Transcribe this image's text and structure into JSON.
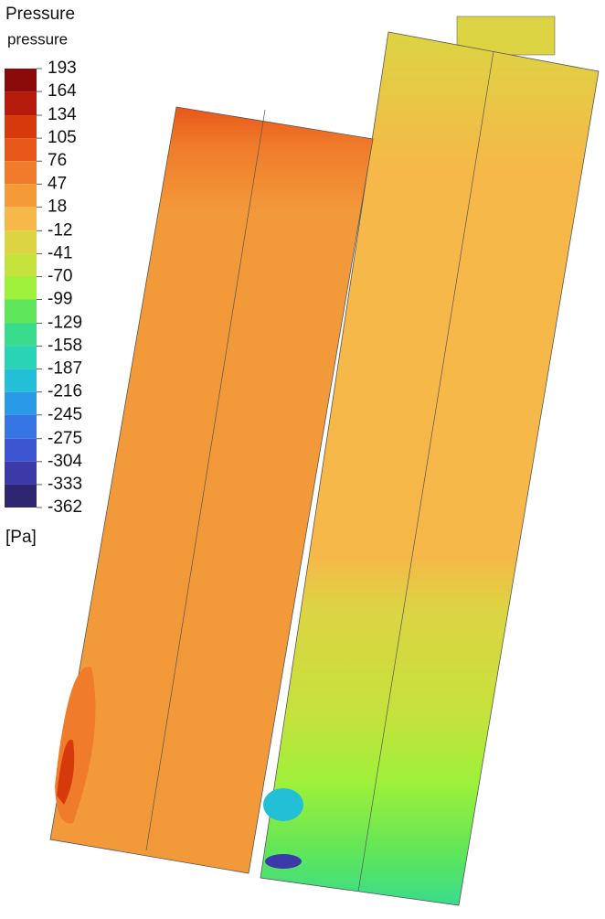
{
  "chart_data": {
    "type": "contour",
    "title": "Pressure",
    "subtitle": "pressure",
    "unit": "[Pa]",
    "clim": [
      -362,
      193
    ],
    "ticks": [
      193,
      164,
      134,
      105,
      76,
      47,
      18,
      -12,
      -41,
      -70,
      -99,
      -129,
      -158,
      -187,
      -216,
      -245,
      -275,
      -304,
      -333,
      -362
    ],
    "colors": [
      "#8b0a0a",
      "#b51c0c",
      "#d63a0c",
      "#e8571a",
      "#f07b2a",
      "#f59a38",
      "#f6b848",
      "#dcd443",
      "#c6e23c",
      "#9ef03a",
      "#5fe65a",
      "#38dc8c",
      "#29d3b5",
      "#22bfd6",
      "#2a9ae6",
      "#3576e4",
      "#3d55d0",
      "#3b3aa8",
      "#2e2670"
    ]
  }
}
